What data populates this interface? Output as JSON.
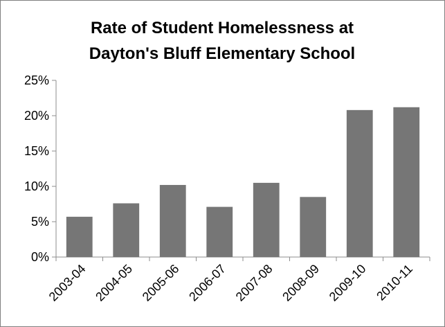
{
  "chart_data": {
    "type": "bar",
    "title_lines": [
      "Rate of Student Homelessness at",
      "Dayton's Bluff Elementary School"
    ],
    "categories": [
      "2003-04",
      "2004-05",
      "2005-06",
      "2006-07",
      "2007-08",
      "2008-09",
      "2009-10",
      "2010-11"
    ],
    "values": [
      5.7,
      7.6,
      10.2,
      7.1,
      10.5,
      8.5,
      20.8,
      21.2
    ],
    "ytick_labels": [
      "0%",
      "5%",
      "10%",
      "15%",
      "20%",
      "25%"
    ],
    "ylim": [
      0,
      25
    ],
    "xlabel": "",
    "ylabel": "",
    "grid": false,
    "legend": "none",
    "colors": {
      "bar": "#767676",
      "axis": "#8c8c8c",
      "frame": "#7f7f7f"
    }
  }
}
